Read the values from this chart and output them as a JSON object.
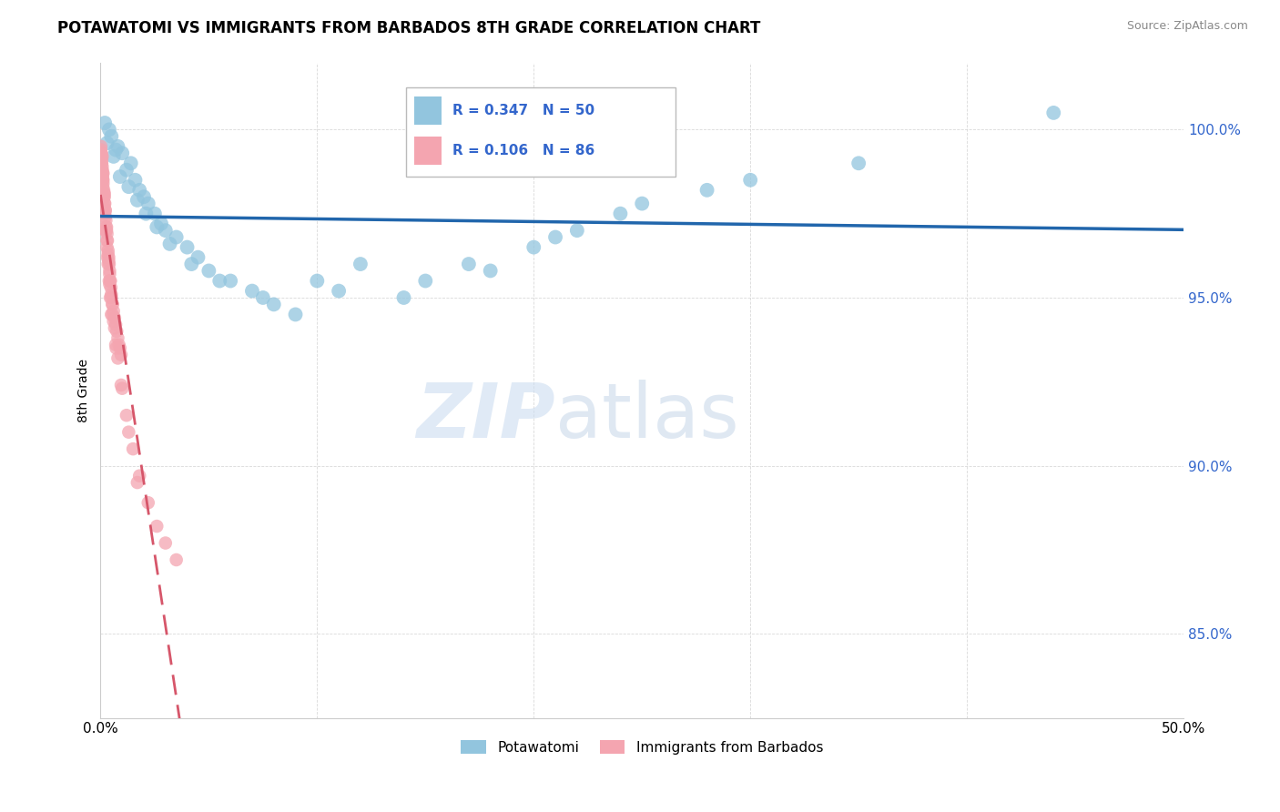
{
  "title": "POTAWATOMI VS IMMIGRANTS FROM BARBADOS 8TH GRADE CORRELATION CHART",
  "source": "Source: ZipAtlas.com",
  "ylabel": "8th Grade",
  "xmin": 0.0,
  "xmax": 50.0,
  "ymin": 82.5,
  "ymax": 102.0,
  "yticks": [
    85.0,
    90.0,
    95.0,
    100.0
  ],
  "ytick_labels": [
    "85.0%",
    "90.0%",
    "95.0%",
    "100.0%"
  ],
  "legend_r_blue": "R = 0.347",
  "legend_n_blue": "N = 50",
  "legend_r_pink": "R = 0.106",
  "legend_n_pink": "N = 86",
  "color_blue": "#92c5de",
  "color_blue_line": "#2166ac",
  "color_pink": "#f4a5b0",
  "color_pink_line": "#d6566a",
  "watermark_zip": "ZIP",
  "watermark_atlas": "atlas",
  "blue_x": [
    0.2,
    0.4,
    0.5,
    0.8,
    1.0,
    1.2,
    1.4,
    1.6,
    1.8,
    2.0,
    2.2,
    2.5,
    2.8,
    3.0,
    3.5,
    4.0,
    4.5,
    5.0,
    6.0,
    7.0,
    8.0,
    10.0,
    12.0,
    15.0,
    18.0,
    20.0,
    22.0,
    25.0,
    30.0,
    44.0,
    0.3,
    0.6,
    0.9,
    1.3,
    1.7,
    2.1,
    2.6,
    3.2,
    4.2,
    5.5,
    7.5,
    9.0,
    11.0,
    14.0,
    17.0,
    21.0,
    24.0,
    28.0,
    35.0,
    0.7
  ],
  "blue_y": [
    100.2,
    100.0,
    99.8,
    99.5,
    99.3,
    98.8,
    99.0,
    98.5,
    98.2,
    98.0,
    97.8,
    97.5,
    97.2,
    97.0,
    96.8,
    96.5,
    96.2,
    95.8,
    95.5,
    95.2,
    94.8,
    95.5,
    96.0,
    95.5,
    95.8,
    96.5,
    97.0,
    97.8,
    98.5,
    100.5,
    99.6,
    99.2,
    98.6,
    98.3,
    97.9,
    97.5,
    97.1,
    96.6,
    96.0,
    95.5,
    95.0,
    94.5,
    95.2,
    95.0,
    96.0,
    96.8,
    97.5,
    98.2,
    99.0,
    99.4
  ],
  "pink_x": [
    0.02,
    0.04,
    0.06,
    0.08,
    0.1,
    0.12,
    0.15,
    0.18,
    0.2,
    0.22,
    0.25,
    0.28,
    0.3,
    0.32,
    0.35,
    0.38,
    0.4,
    0.42,
    0.45,
    0.48,
    0.5,
    0.55,
    0.6,
    0.65,
    0.7,
    0.75,
    0.8,
    0.85,
    0.9,
    0.95,
    0.05,
    0.1,
    0.15,
    0.2,
    0.25,
    0.3,
    0.35,
    0.4,
    0.45,
    0.5,
    0.08,
    0.12,
    0.18,
    0.22,
    0.28,
    0.35,
    0.42,
    0.5,
    0.6,
    0.7,
    0.02,
    0.04,
    0.06,
    0.08,
    0.1,
    0.12,
    0.15,
    0.18,
    0.22,
    0.25,
    0.3,
    0.38,
    0.45,
    0.55,
    0.65,
    0.8,
    1.0,
    1.2,
    1.5,
    1.8,
    2.2,
    2.6,
    3.0,
    3.5,
    0.03,
    0.07,
    0.11,
    0.16,
    0.23,
    0.32,
    0.42,
    0.55,
    0.72,
    0.95,
    1.3,
    1.7
  ],
  "pink_y": [
    99.5,
    99.3,
    99.1,
    98.9,
    98.7,
    98.5,
    98.2,
    98.0,
    97.8,
    97.6,
    97.3,
    97.1,
    96.9,
    96.7,
    96.4,
    96.2,
    96.0,
    95.8,
    95.5,
    95.3,
    95.1,
    94.8,
    94.6,
    94.4,
    94.2,
    94.0,
    93.8,
    93.6,
    93.5,
    93.3,
    99.0,
    98.5,
    98.0,
    97.5,
    97.0,
    96.5,
    96.0,
    95.5,
    95.0,
    94.5,
    99.2,
    98.7,
    98.1,
    97.6,
    97.0,
    96.3,
    95.7,
    95.0,
    94.3,
    93.6,
    99.4,
    99.2,
    99.0,
    98.8,
    98.6,
    98.4,
    98.1,
    97.8,
    97.4,
    97.1,
    96.7,
    96.1,
    95.5,
    94.8,
    94.1,
    93.2,
    92.3,
    91.5,
    90.5,
    89.7,
    88.9,
    88.2,
    87.7,
    87.2,
    99.3,
    98.8,
    98.3,
    97.7,
    97.0,
    96.2,
    95.4,
    94.5,
    93.5,
    92.4,
    91.0,
    89.5
  ]
}
